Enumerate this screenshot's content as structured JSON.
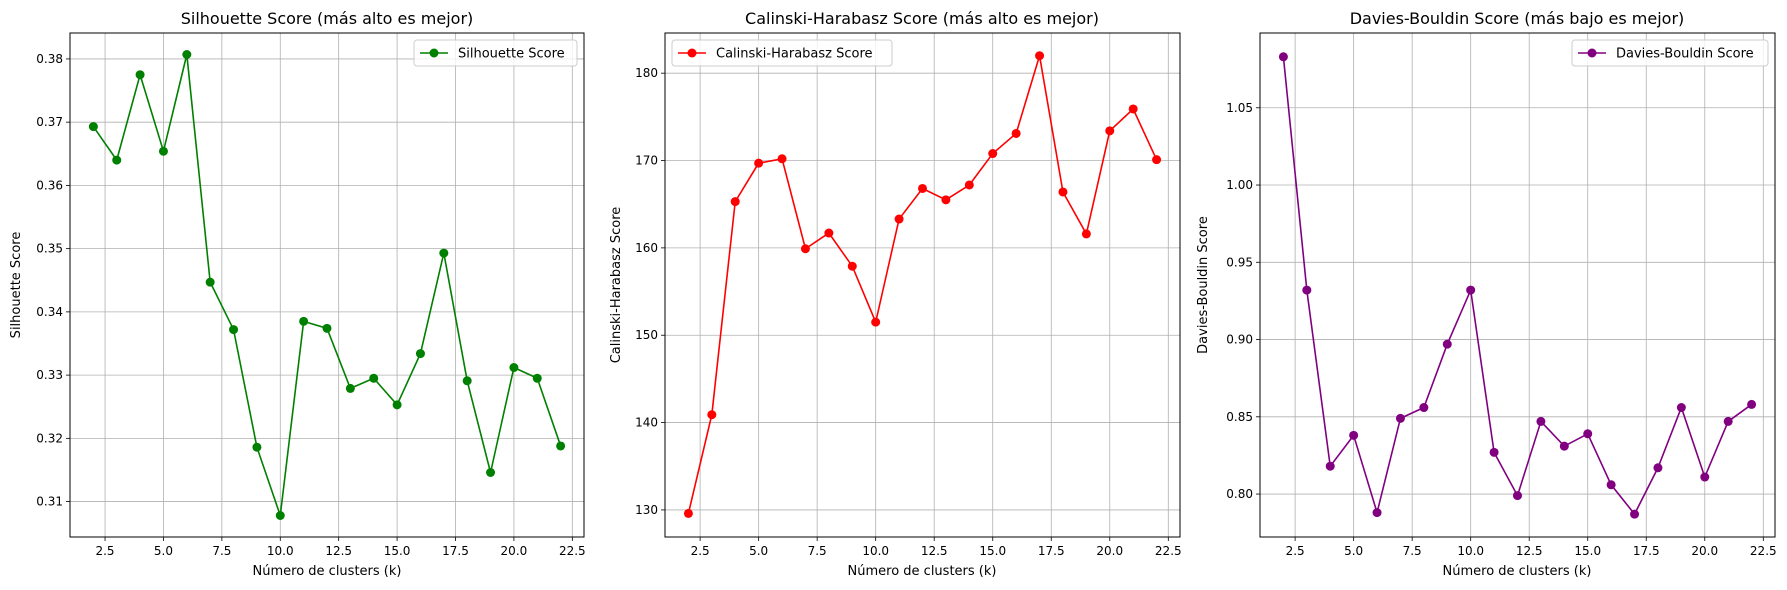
{
  "chart_data": [
    {
      "type": "line",
      "title": "Silhouette Score (más alto es mejor)",
      "xlabel": "Número de clusters (k)",
      "ylabel": "Silhouette Score",
      "x": [
        2,
        3,
        4,
        5,
        6,
        7,
        8,
        9,
        10,
        11,
        12,
        13,
        14,
        15,
        16,
        17,
        18,
        19,
        20,
        21,
        22
      ],
      "series": [
        {
          "name": "Silhouette Score",
          "color": "#008000",
          "values": [
            0.3693,
            0.364,
            0.3775,
            0.3654,
            0.3807,
            0.3447,
            0.3372,
            0.3186,
            0.3078,
            0.3385,
            0.3374,
            0.3279,
            0.3295,
            0.3253,
            0.3334,
            0.3493,
            0.3291,
            0.3146,
            0.3312,
            0.3295,
            0.3188
          ]
        }
      ],
      "xlim": [
        1,
        23
      ],
      "ylim": [
        0.3044,
        0.3841
      ],
      "xticks": [
        "2.5",
        "5.0",
        "7.5",
        "10.0",
        "12.5",
        "15.0",
        "17.5",
        "20.0",
        "22.5"
      ],
      "yticks": [
        "0.31",
        "0.32",
        "0.33",
        "0.34",
        "0.35",
        "0.36",
        "0.37",
        "0.38"
      ],
      "legend": "upper right",
      "grid": true
    },
    {
      "type": "line",
      "title": "Calinski-Harabasz Score (más alto es mejor)",
      "xlabel": "Número de clusters (k)",
      "ylabel": "Calinski-Harabasz Score",
      "x": [
        2,
        3,
        4,
        5,
        6,
        7,
        8,
        9,
        10,
        11,
        12,
        13,
        14,
        15,
        16,
        17,
        18,
        19,
        20,
        21,
        22
      ],
      "series": [
        {
          "name": "Calinski-Harabasz Score",
          "color": "#ff0000",
          "values": [
            129.6,
            140.9,
            165.3,
            169.7,
            170.2,
            159.9,
            161.7,
            157.9,
            151.5,
            163.3,
            166.8,
            165.5,
            167.2,
            170.8,
            173.1,
            182.0,
            166.4,
            161.6,
            173.4,
            175.9,
            170.1
          ]
        }
      ],
      "xlim": [
        1,
        23
      ],
      "ylim": [
        126.9,
        184.6
      ],
      "xticks": [
        "2.5",
        "5.0",
        "7.5",
        "10.0",
        "12.5",
        "15.0",
        "17.5",
        "20.0",
        "22.5"
      ],
      "yticks": [
        "130",
        "140",
        "150",
        "160",
        "170",
        "180"
      ],
      "legend": "upper left",
      "grid": true
    },
    {
      "type": "line",
      "title": "Davies-Bouldin Score (más bajo es mejor)",
      "xlabel": "Número de clusters (k)",
      "ylabel": "Davies-Bouldin Score",
      "x": [
        2,
        3,
        4,
        5,
        6,
        7,
        8,
        9,
        10,
        11,
        12,
        13,
        14,
        15,
        16,
        17,
        18,
        19,
        20,
        21,
        22
      ],
      "series": [
        {
          "name": "Davies-Bouldin Score",
          "color": "#800080",
          "values": [
            1.083,
            0.932,
            0.818,
            0.838,
            0.788,
            0.849,
            0.856,
            0.897,
            0.932,
            0.827,
            0.799,
            0.847,
            0.831,
            0.839,
            0.806,
            0.787,
            0.817,
            0.856,
            0.811,
            0.847,
            0.858
          ]
        }
      ],
      "xlim": [
        1,
        23
      ],
      "ylim": [
        0.7722,
        1.0984
      ],
      "xticks": [
        "2.5",
        "5.0",
        "7.5",
        "10.0",
        "12.5",
        "15.0",
        "17.5",
        "20.0",
        "22.5"
      ],
      "yticks": [
        "0.80",
        "0.85",
        "0.90",
        "0.95",
        "1.00",
        "1.05"
      ],
      "legend": "upper right",
      "grid": true
    }
  ]
}
